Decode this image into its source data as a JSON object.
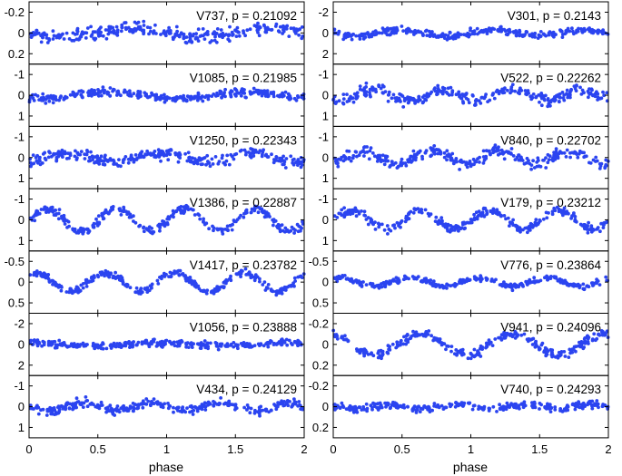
{
  "chart_data": {
    "type": "scatter",
    "xlabel": "phase",
    "xlim": [
      0,
      2
    ],
    "xticks": [
      "0",
      "0.5",
      "1",
      "1.5",
      "2"
    ],
    "point_color": "#2b44f0",
    "columns": [
      {
        "name": "left",
        "panels": [
          {
            "star": "V737",
            "period": "0.21092",
            "title": "V737, p = 0.21092",
            "yticks": [
              "-0.2",
              "0",
              "0.2"
            ],
            "ylim": [
              -0.3,
              0.3
            ],
            "amplitude": 0.04,
            "noise": 0.045,
            "cycles": 2
          },
          {
            "star": "V1085",
            "period": "0.21985",
            "title": "V1085, p = 0.21985",
            "yticks": [
              "-1",
              "0",
              "1"
            ],
            "ylim": [
              -1.5,
              1.5
            ],
            "amplitude": 0.15,
            "noise": 0.14,
            "cycles": 2
          },
          {
            "star": "V1250",
            "period": "0.22343",
            "title": "V1250, p = 0.22343",
            "yticks": [
              "-1",
              "0",
              "1"
            ],
            "ylim": [
              -1.5,
              1.5
            ],
            "amplitude": 0.2,
            "noise": 0.2,
            "cycles": 3
          },
          {
            "star": "V1386",
            "period": "0.22887",
            "title": "V1386, p = 0.22887",
            "yticks": [
              "-1",
              "0",
              "1"
            ],
            "ylim": [
              -1.5,
              1.5
            ],
            "amplitude": 0.55,
            "noise": 0.15,
            "cycles": 4
          },
          {
            "star": "V1417",
            "period": "0.23782",
            "title": "V1417, p = 0.23782",
            "yticks": [
              "-0.5",
              "0",
              "0.5"
            ],
            "ylim": [
              -0.75,
              0.75
            ],
            "amplitude": 0.22,
            "noise": 0.06,
            "cycles": 4
          },
          {
            "star": "V1056",
            "period": "0.23888",
            "title": "V1056, p = 0.23888",
            "yticks": [
              "-2",
              "0",
              "2"
            ],
            "ylim": [
              -3,
              3
            ],
            "amplitude": 0.15,
            "noise": 0.22,
            "cycles": 2
          },
          {
            "star": "V434",
            "period": "0.24129",
            "title": "V434, p = 0.24129",
            "yticks": [
              "-1",
              "0",
              "1"
            ],
            "ylim": [
              -1.5,
              1.5
            ],
            "amplitude": 0.2,
            "noise": 0.15,
            "cycles": 4
          }
        ]
      },
      {
        "name": "right",
        "panels": [
          {
            "star": "V301",
            "period": "0.2143",
            "title": "V301, p = 0.2143",
            "yticks": [
              "-2",
              "0",
              "2"
            ],
            "ylim": [
              -3,
              3
            ],
            "amplitude": 0.3,
            "noise": 0.25,
            "cycles": 3
          },
          {
            "star": "V522",
            "period": "0.22262",
            "title": "V522, p = 0.22262",
            "yticks": [
              "-1",
              "0",
              "1"
            ],
            "ylim": [
              -1.5,
              1.5
            ],
            "amplitude": 0.25,
            "noise": 0.2,
            "cycles": 4
          },
          {
            "star": "V840",
            "period": "0.22702",
            "title": "V840, p = 0.22702",
            "yticks": [
              "-1",
              "0",
              "1"
            ],
            "ylim": [
              -1.5,
              1.5
            ],
            "amplitude": 0.3,
            "noise": 0.2,
            "cycles": 4
          },
          {
            "star": "V179",
            "period": "0.23212",
            "title": "V179, p = 0.23212",
            "yticks": [
              "-1",
              "0",
              "1"
            ],
            "ylim": [
              -1.5,
              1.5
            ],
            "amplitude": 0.45,
            "noise": 0.15,
            "cycles": 4
          },
          {
            "star": "V776",
            "period": "0.23864",
            "title": "V776, p = 0.23864",
            "yticks": [
              "-0.5",
              "0",
              "0.5"
            ],
            "ylim": [
              -0.75,
              0.75
            ],
            "amplitude": 0.1,
            "noise": 0.05,
            "cycles": 4
          },
          {
            "star": "V941",
            "period": "0.24096",
            "title": "V941, p = 0.24096",
            "yticks": [
              "-0.2",
              "0",
              "0.2"
            ],
            "ylim": [
              -0.3,
              0.3
            ],
            "amplitude": 0.1,
            "noise": 0.03,
            "cycles": 3
          },
          {
            "star": "V740",
            "period": "0.24293",
            "title": "V740, p = 0.24293",
            "yticks": [
              "-0.2",
              "0",
              "0.2"
            ],
            "ylim": [
              -0.3,
              0.3
            ],
            "amplitude": 0.02,
            "noise": 0.025,
            "cycles": 4
          }
        ]
      }
    ]
  }
}
